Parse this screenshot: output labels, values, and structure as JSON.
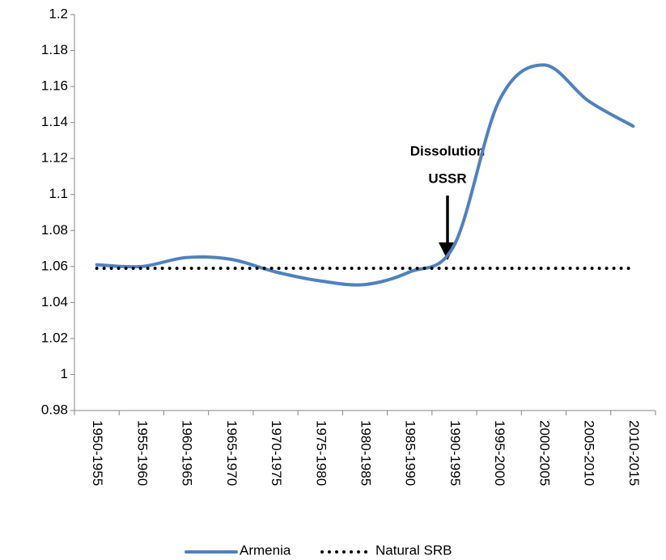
{
  "chart_data": {
    "type": "line",
    "categories": [
      "1950-1955",
      "1955-1960",
      "1960-1965",
      "1965-1970",
      "1970-1975",
      "1975-1980",
      "1980-1985",
      "1985-1990",
      "1990-1995",
      "1995-2000",
      "2000-2005",
      "2005-2010",
      "2010-2015"
    ],
    "series": [
      {
        "name": "Armenia",
        "color": "#4f81bd",
        "style": "solid",
        "values": [
          1.061,
          1.06,
          1.065,
          1.064,
          1.057,
          1.052,
          1.05,
          1.057,
          1.072,
          1.152,
          1.172,
          1.152,
          1.138
        ]
      },
      {
        "name": "Natural SRB",
        "color": "#000000",
        "style": "dotted",
        "values": [
          1.059,
          1.059,
          1.059,
          1.059,
          1.059,
          1.059,
          1.059,
          1.059,
          1.059,
          1.059,
          1.059,
          1.059,
          1.059
        ]
      }
    ],
    "annotation": {
      "lines": [
        "Dissolution",
        "USSR"
      ]
    },
    "ylim": [
      0.98,
      1.2
    ],
    "yticks": [
      0.98,
      1,
      1.02,
      1.04,
      1.06,
      1.08,
      1.1,
      1.12,
      1.14,
      1.16,
      1.18,
      1.2
    ],
    "grid": false,
    "legend": "bottom"
  }
}
